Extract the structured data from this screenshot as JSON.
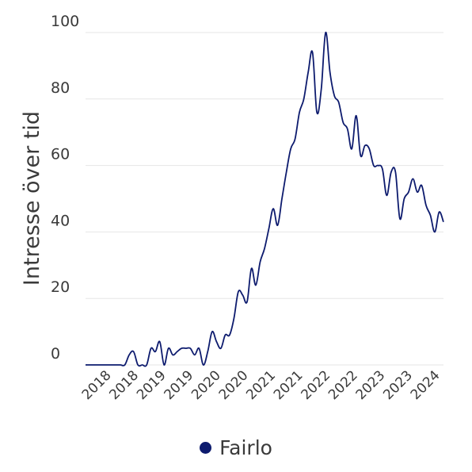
{
  "chart_data": {
    "type": "line",
    "title": "",
    "xlabel": "",
    "ylabel": "Intresse över tid",
    "ylim": [
      0,
      100
    ],
    "y_ticks": [
      0,
      20,
      40,
      60,
      80,
      100
    ],
    "x_tick_labels": [
      "2018",
      "2018",
      "2019",
      "2019",
      "2020",
      "2020",
      "2021",
      "2021",
      "2022",
      "2022",
      "2023",
      "2023",
      "2024"
    ],
    "grid": true,
    "legend_position": "bottom",
    "series": [
      {
        "name": "Fairlo",
        "color": "#0d1b6e",
        "values": [
          0,
          0,
          0,
          0,
          0,
          0,
          0,
          0,
          0,
          0,
          3,
          4,
          0,
          0,
          0,
          5,
          4,
          7,
          0,
          5,
          3,
          4,
          5,
          5,
          5,
          3,
          5,
          0,
          4,
          10,
          7,
          5,
          9,
          9,
          14,
          22,
          21,
          19,
          29,
          24,
          31,
          35,
          41,
          47,
          42,
          50,
          58,
          65,
          68,
          76,
          80,
          88,
          94,
          76,
          83,
          100,
          88,
          81,
          79,
          73,
          71,
          65,
          75,
          63,
          66,
          65,
          60,
          60,
          59,
          51,
          58,
          58,
          44,
          50,
          52,
          56,
          52,
          54,
          48,
          45,
          40,
          46,
          43
        ]
      }
    ]
  }
}
